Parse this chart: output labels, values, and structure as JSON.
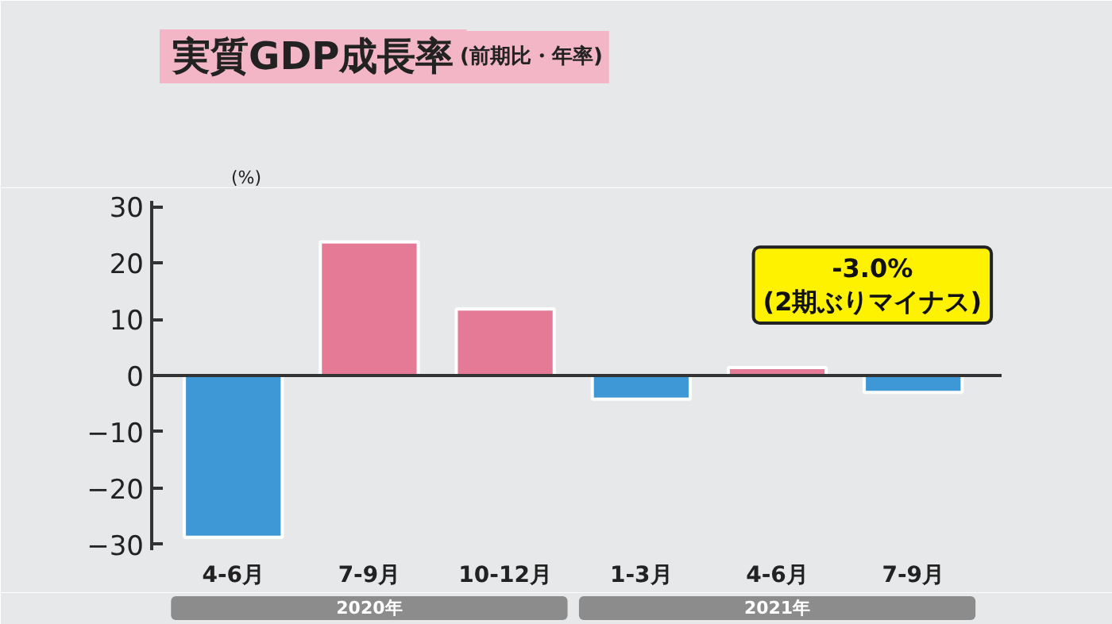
{
  "chart_data": {
    "type": "bar",
    "title": "実質GDP成長率",
    "subtitle": "(前期比・年率)",
    "ylabel": "(%)",
    "categories": [
      "4-6月",
      "7-9月",
      "10-12月",
      "1-3月",
      "4-6月",
      "7-9月"
    ],
    "values": [
      -28.7,
      23.7,
      11.8,
      -4.2,
      1.4,
      -3.0
    ],
    "colors": [
      "#3f98d6",
      "#e57a96",
      "#e57a96",
      "#3f98d6",
      "#e57a96",
      "#3f98d6"
    ],
    "ylim": [
      -31,
      31
    ],
    "yticks": [
      -30,
      -20,
      -10,
      0,
      10,
      20,
      30
    ],
    "annotations": [
      "-3.0%\n(2期ぶりマイナス)",
      "2020年",
      "2021年"
    ]
  }
}
